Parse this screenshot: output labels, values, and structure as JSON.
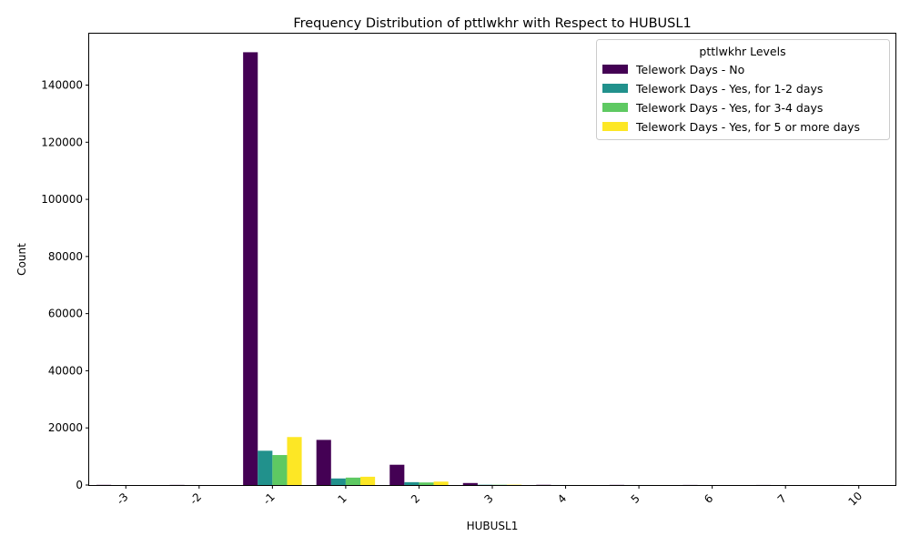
{
  "chart_data": {
    "type": "bar",
    "title": "Frequency Distribution of pttlwkhr with Respect to HUBUSL1",
    "xlabel": "HUBUSL1",
    "ylabel": "Count",
    "categories": [
      "-3",
      "-2",
      "-1",
      "1",
      "2",
      "3",
      "4",
      "5",
      "6",
      "7",
      "10"
    ],
    "ylim": [
      0,
      158000
    ],
    "yticks": [
      0,
      20000,
      40000,
      60000,
      80000,
      100000,
      120000,
      140000
    ],
    "grid": false,
    "legend": {
      "title": "pttlwkhr Levels",
      "position": "top-right"
    },
    "series": [
      {
        "name": "Telework Days - No",
        "color": "#440154",
        "values": [
          60,
          40,
          151500,
          15800,
          7100,
          700,
          80,
          50,
          30,
          20,
          10
        ]
      },
      {
        "name": "Telework Days - Yes, for 1-2 days",
        "color": "#21918c",
        "values": [
          0,
          0,
          12000,
          2300,
          1000,
          100,
          10,
          5,
          0,
          0,
          0
        ]
      },
      {
        "name": "Telework Days - Yes, for 3-4 days",
        "color": "#5ec962",
        "values": [
          0,
          0,
          10500,
          2600,
          900,
          100,
          10,
          5,
          0,
          0,
          0
        ]
      },
      {
        "name": "Telework Days - Yes, for 5 or more days",
        "color": "#fde725",
        "values": [
          0,
          0,
          16800,
          2900,
          1200,
          120,
          10,
          5,
          0,
          0,
          0
        ]
      }
    ]
  }
}
